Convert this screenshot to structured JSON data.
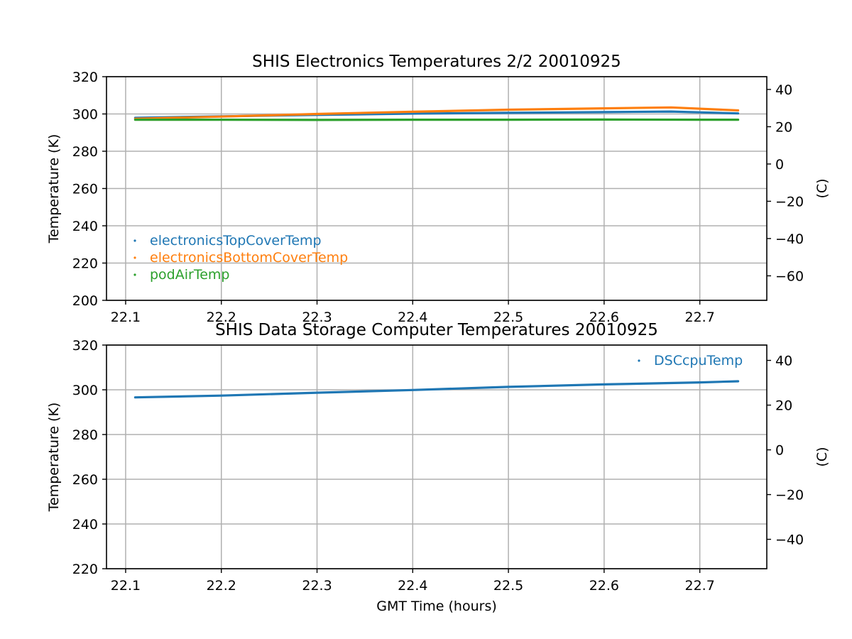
{
  "chart_data": [
    {
      "type": "line",
      "title": "SHIS Electronics Temperatures 2/2 20010925",
      "xlabel": "",
      "ylabel": "Temperature (K)",
      "y2label": "(C)",
      "xlim": [
        22.08,
        22.77
      ],
      "ylim": [
        200,
        320
      ],
      "y2lim": [
        -73.15,
        46.85
      ],
      "x_ticks": [
        "22.1",
        "22.2",
        "22.3",
        "22.4",
        "22.5",
        "22.6",
        "22.7"
      ],
      "x_tick_values": [
        22.1,
        22.2,
        22.3,
        22.4,
        22.5,
        22.6,
        22.7
      ],
      "y_ticks": [
        "200",
        "220",
        "240",
        "260",
        "280",
        "300",
        "320"
      ],
      "y_tick_values": [
        200,
        220,
        240,
        260,
        280,
        300,
        320
      ],
      "y2_ticks": [
        "−60",
        "−40",
        "−20",
        "0",
        "20",
        "40"
      ],
      "y2_tick_values": [
        -60,
        -40,
        -20,
        0,
        20,
        40
      ],
      "grid": true,
      "legend_position": "lower-left",
      "series": [
        {
          "name": "electronicsTopCoverTemp",
          "color": "#1f77b4",
          "x": [
            22.11,
            22.2,
            22.3,
            22.4,
            22.5,
            22.6,
            22.67,
            22.74
          ],
          "values": [
            297.9,
            298.7,
            299.5,
            300.2,
            300.6,
            301.0,
            301.3,
            300.3
          ]
        },
        {
          "name": "electronicsBottomCoverTemp",
          "color": "#ff7f0e",
          "x": [
            22.11,
            22.2,
            22.3,
            22.4,
            22.5,
            22.6,
            22.67,
            22.74
          ],
          "values": [
            297.4,
            298.6,
            300.0,
            301.2,
            302.3,
            303.0,
            303.5,
            301.9
          ]
        },
        {
          "name": "podAirTemp",
          "color": "#2ca02c",
          "x": [
            22.11,
            22.2,
            22.3,
            22.4,
            22.5,
            22.6,
            22.7,
            22.74
          ],
          "values": [
            296.9,
            296.9,
            296.8,
            296.9,
            296.9,
            297.0,
            296.9,
            296.9
          ]
        }
      ]
    },
    {
      "type": "line",
      "title": "SHIS Data Storage Computer Temperatures 20010925",
      "xlabel": "GMT Time (hours)",
      "ylabel": "Temperature (K)",
      "y2label": "(C)",
      "xlim": [
        22.08,
        22.77
      ],
      "ylim": [
        220,
        320
      ],
      "y2lim": [
        -53.15,
        46.85
      ],
      "x_ticks": [
        "22.1",
        "22.2",
        "22.3",
        "22.4",
        "22.5",
        "22.6",
        "22.7"
      ],
      "x_tick_values": [
        22.1,
        22.2,
        22.3,
        22.4,
        22.5,
        22.6,
        22.7
      ],
      "y_ticks": [
        "220",
        "240",
        "260",
        "280",
        "300",
        "320"
      ],
      "y_tick_values": [
        220,
        240,
        260,
        280,
        300,
        320
      ],
      "y2_ticks": [
        "−40",
        "−20",
        "0",
        "20",
        "40"
      ],
      "y2_tick_values": [
        -40,
        -20,
        0,
        20,
        40
      ],
      "grid": true,
      "legend_position": "upper-right",
      "series": [
        {
          "name": "DSCcpuTemp",
          "color": "#1f77b4",
          "x": [
            22.11,
            22.2,
            22.3,
            22.4,
            22.5,
            22.6,
            22.7,
            22.74
          ],
          "values": [
            296.6,
            297.4,
            298.7,
            299.9,
            301.3,
            302.4,
            303.3,
            303.8
          ]
        }
      ]
    }
  ]
}
